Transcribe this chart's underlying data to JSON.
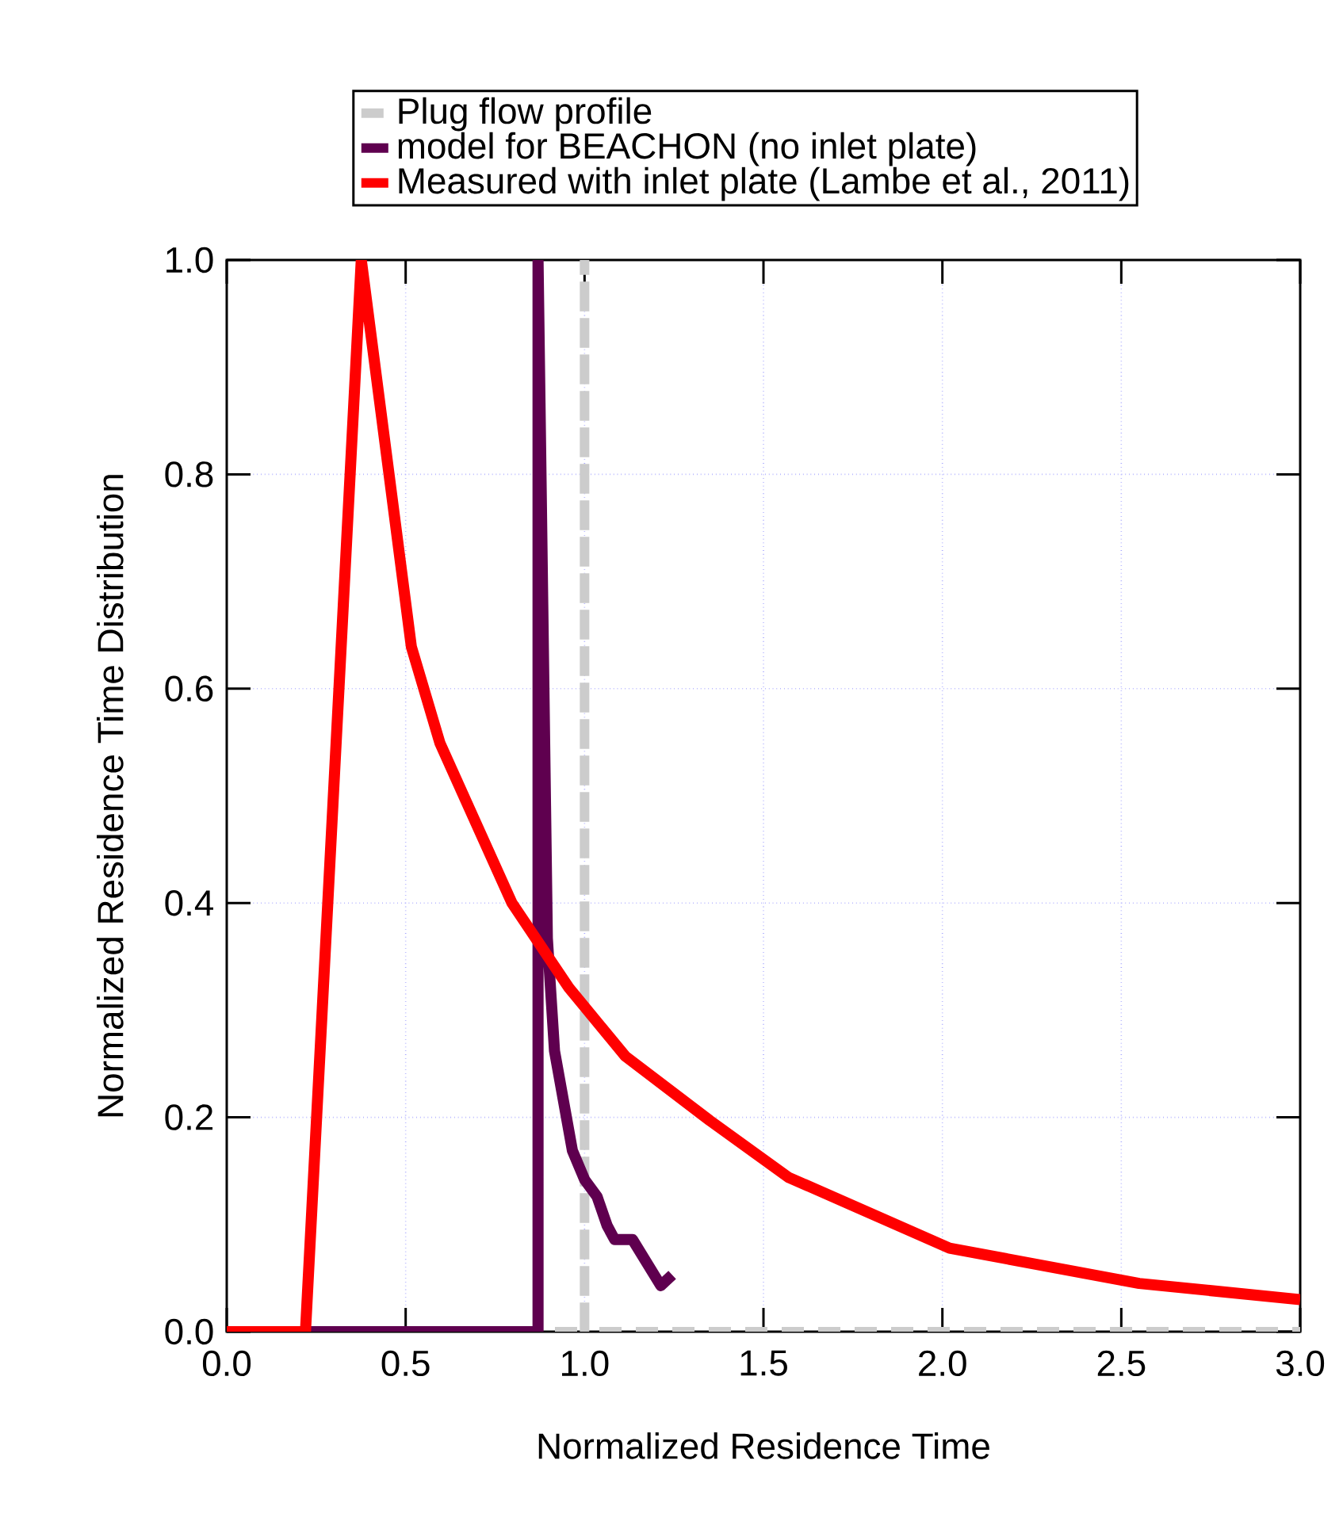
{
  "chart_data": {
    "type": "line",
    "xlabel": "Normalized Residence Time",
    "ylabel": "Normalized Residence Time Distribution",
    "xlim": [
      0,
      3
    ],
    "ylim": [
      0,
      1
    ],
    "xticks": [
      {
        "value": 0,
        "label": "0.0"
      },
      {
        "value": 0.5,
        "label": "0.5"
      },
      {
        "value": 1,
        "label": "1.0"
      },
      {
        "value": 1.5,
        "label": "1.5"
      },
      {
        "value": 2,
        "label": "2.0"
      },
      {
        "value": 2.5,
        "label": "2.5"
      },
      {
        "value": 3,
        "label": "3.0"
      }
    ],
    "yticks": [
      {
        "value": 0,
        "label": "0.0"
      },
      {
        "value": 0.2,
        "label": "0.2"
      },
      {
        "value": 0.4,
        "label": "0.4"
      },
      {
        "value": 0.6,
        "label": "0.6"
      },
      {
        "value": 0.8,
        "label": "0.8"
      },
      {
        "value": 1,
        "label": "1.0"
      }
    ],
    "grid": true,
    "legend": "top",
    "marker": "none",
    "series": [
      {
        "name": "Plug flow profile",
        "color": "#cccccc",
        "line_style": "dashed",
        "x": [
          0,
          1,
          1,
          1,
          3
        ],
        "values": [
          0,
          0,
          1,
          0,
          0
        ]
      },
      {
        "name": "model for BEACHON (no inlet plate)",
        "color": "#5f004f",
        "line_style": "solid",
        "x": [
          0,
          0.87,
          0.87,
          0.896,
          0.916,
          0.966,
          1.0,
          1.035,
          1.063,
          1.084,
          1.134,
          1.213,
          1.245
        ],
        "values": [
          0,
          0,
          1,
          0.367,
          0.262,
          0.169,
          0.142,
          0.126,
          0.099,
          0.086,
          0.086,
          0.043,
          0.053
        ]
      },
      {
        "name": "Measured with inlet plate (Lambe et al., 2011)",
        "color": "#ff0000",
        "line_style": "solid",
        "x": [
          0,
          0.22,
          0.376,
          0.516,
          0.596,
          0.797,
          0.956,
          1.114,
          1.35,
          1.57,
          2.02,
          2.55,
          3.0
        ],
        "values": [
          0,
          0,
          1,
          0.639,
          0.549,
          0.4,
          0.321,
          0.257,
          0.197,
          0.144,
          0.078,
          0.045,
          0.03
        ]
      }
    ]
  }
}
